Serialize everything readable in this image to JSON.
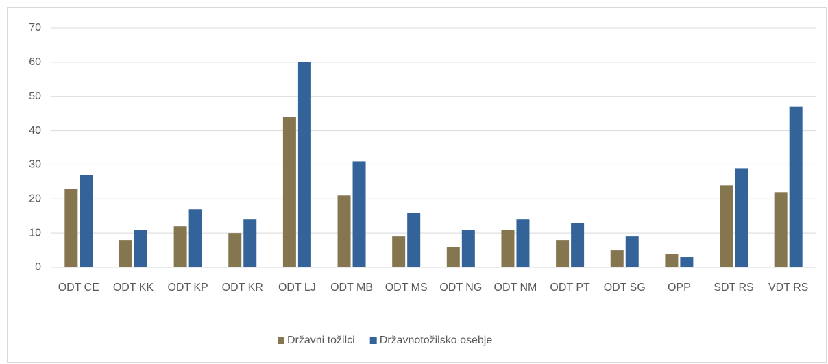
{
  "chart_data": {
    "type": "bar",
    "categories": [
      "ODT CE",
      "ODT KK",
      "ODT KP",
      "ODT KR",
      "ODT LJ",
      "ODT MB",
      "ODT MS",
      "ODT NG",
      "ODT NM",
      "ODT PT",
      "ODT SG",
      "OPP",
      "SDT RS",
      "VDT RS"
    ],
    "series": [
      {
        "name": "Državni tožilci",
        "color": "#857650",
        "values": [
          23,
          8,
          12,
          10,
          44,
          21,
          9,
          6,
          11,
          8,
          5,
          4,
          24,
          22
        ]
      },
      {
        "name": "Državnotožilsko osebje",
        "color": "#336398",
        "values": [
          27,
          11,
          17,
          14,
          60,
          31,
          16,
          11,
          14,
          13,
          9,
          3,
          29,
          47
        ]
      }
    ],
    "ylim": [
      0,
      70
    ],
    "yticks": [
      0,
      10,
      20,
      30,
      40,
      50,
      60,
      70
    ],
    "grid": true,
    "legend": "bottom"
  }
}
